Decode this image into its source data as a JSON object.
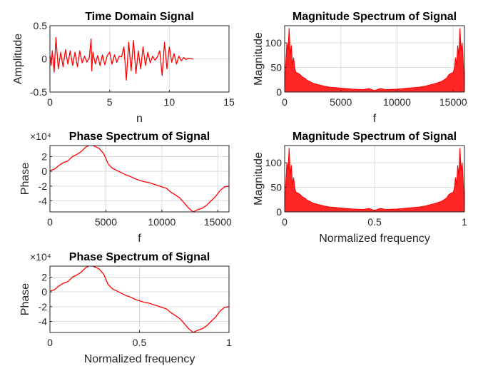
{
  "chart_data": [
    {
      "type": "line",
      "title": "Time Domain Signal",
      "xlabel": "n",
      "ylabel": "Amplitude",
      "xlim": [
        0,
        15
      ],
      "ylim": [
        -0.5,
        0.5
      ],
      "xticks": [
        "0",
        "5",
        "10",
        "15"
      ],
      "yticks": [
        "-0.5",
        "0",
        "0.5"
      ],
      "exponent": "",
      "grid": true,
      "color": "#ff0000",
      "series": [
        {
          "x": [
            0.0,
            0.1,
            0.2,
            0.35,
            0.5,
            0.7,
            0.9,
            1.1,
            1.3,
            1.5,
            1.7,
            1.9,
            2.1,
            2.3,
            2.5,
            2.7,
            2.9,
            3.1,
            3.3,
            3.45,
            3.5,
            3.6,
            3.8,
            4.0,
            4.2,
            4.4,
            4.6,
            4.8,
            5.0,
            5.2,
            5.4,
            5.6,
            5.8,
            6.0,
            6.2,
            6.4,
            6.6,
            6.8,
            7.0,
            7.2,
            7.4,
            7.6,
            7.8,
            8.0,
            8.2,
            8.4,
            8.6,
            8.8,
            9.0,
            9.2,
            9.4,
            9.6,
            9.8,
            10.0,
            10.2,
            10.4,
            10.6,
            10.8,
            11.0,
            11.2,
            11.4,
            11.6,
            11.8,
            12.0
          ],
          "y": [
            0.05,
            -0.1,
            0.12,
            -0.2,
            0.32,
            -0.15,
            0.1,
            -0.12,
            0.14,
            -0.08,
            0.12,
            -0.1,
            0.1,
            -0.12,
            0.12,
            -0.06,
            0.04,
            -0.05,
            0.02,
            0.3,
            -0.18,
            0.1,
            -0.08,
            0.05,
            -0.1,
            0.06,
            -0.09,
            0.05,
            0.1,
            -0.08,
            0.06,
            -0.05,
            0.04,
            0.03,
            0.18,
            -0.32,
            0.25,
            -0.18,
            0.28,
            -0.22,
            0.12,
            -0.15,
            0.18,
            -0.1,
            0.1,
            -0.06,
            0.04,
            -0.02,
            0.03,
            0.12,
            -0.25,
            0.25,
            -0.15,
            0.18,
            -0.05,
            0.08,
            -0.08,
            0.04,
            -0.03,
            0.02,
            -0.01,
            0.01,
            0.0,
            0.0
          ]
        }
      ]
    },
    {
      "type": "area",
      "title": "Magnitude Spectrum of Signal",
      "xlabel": "f",
      "ylabel": "Magnitude",
      "xlim": [
        0,
        16000
      ],
      "ylim": [
        0,
        135
      ],
      "xticks": [
        "0",
        "5000",
        "10000",
        "15000"
      ],
      "yticks": [
        "0",
        "50",
        "100"
      ],
      "exponent": "",
      "grid": true,
      "color": "#ff0000",
      "series": [
        {
          "x": [
            0,
            100,
            200,
            300,
            400,
            500,
            600,
            700,
            800,
            900,
            1000,
            1200,
            1400,
            1600,
            1800,
            2000,
            2200,
            2500,
            3000,
            3500,
            4000,
            5000,
            6000,
            7000,
            7500,
            8000,
            8500,
            9000,
            10000,
            11000,
            12000,
            12500,
            13000,
            13500,
            14000,
            14200,
            14400,
            14600,
            14800,
            15000,
            15100,
            15200,
            15300,
            15400,
            15500,
            15600,
            15700,
            15800,
            15900,
            16000
          ],
          "y": [
            5,
            60,
            100,
            85,
            130,
            75,
            95,
            55,
            70,
            48,
            40,
            38,
            35,
            30,
            28,
            24,
            22,
            18,
            15,
            12,
            10,
            8,
            6,
            5,
            7,
            3,
            7,
            5,
            6,
            8,
            10,
            12,
            15,
            18,
            22,
            25,
            28,
            35,
            38,
            40,
            48,
            70,
            55,
            95,
            75,
            130,
            85,
            100,
            60,
            5
          ]
        }
      ]
    },
    {
      "type": "line",
      "title": "Phase Spectrum of Signal",
      "xlabel": "f",
      "ylabel": "Phase",
      "xlim": [
        0,
        16000
      ],
      "ylim": [
        -5.5,
        3.5
      ],
      "xticks": [
        "0",
        "5000",
        "10000",
        "15000"
      ],
      "yticks": [
        "-4",
        "-2",
        "0",
        "2"
      ],
      "exponent": "×10⁴",
      "grid": true,
      "color": "#ff0000",
      "series": [
        {
          "x": [
            0,
            400,
            800,
            1200,
            1600,
            2000,
            2400,
            2800,
            3200,
            3600,
            4000,
            4400,
            4800,
            5200,
            5600,
            6000,
            6400,
            6800,
            7200,
            7600,
            8000,
            8400,
            8800,
            9200,
            9600,
            10000,
            10400,
            10800,
            11200,
            11600,
            12000,
            12400,
            12800,
            13200,
            13600,
            14000,
            14400,
            14800,
            15200,
            15600,
            16000
          ],
          "y": [
            0.1,
            0.3,
            0.8,
            1.2,
            1.4,
            2.0,
            2.3,
            2.7,
            3.3,
            3.6,
            3.4,
            3.1,
            2.4,
            1.0,
            0.4,
            0.1,
            -0.2,
            -0.5,
            -0.7,
            -1.0,
            -1.2,
            -1.4,
            -1.5,
            -1.7,
            -1.9,
            -2.1,
            -2.3,
            -2.8,
            -3.2,
            -3.6,
            -4.3,
            -5.0,
            -5.5,
            -5.2,
            -5.0,
            -4.6,
            -4.0,
            -3.4,
            -2.6,
            -2.1,
            -2.0
          ]
        }
      ]
    },
    {
      "type": "area",
      "title": "Magnitude Spectrum of Signal",
      "xlabel": "Normalized frequency",
      "ylabel": "Magnitude",
      "xlim": [
        0,
        1
      ],
      "ylim": [
        0,
        135
      ],
      "xticks": [
        "0",
        "0.5",
        "1"
      ],
      "yticks": [
        "0",
        "50",
        "100"
      ],
      "exponent": "",
      "grid": true,
      "color": "#ff0000",
      "series": [
        {
          "x": [
            0.0,
            0.00625,
            0.0125,
            0.01875,
            0.025,
            0.03125,
            0.0375,
            0.04375,
            0.05,
            0.05625,
            0.0625,
            0.075,
            0.0875,
            0.1,
            0.1125,
            0.125,
            0.1375,
            0.15625,
            0.1875,
            0.21875,
            0.25,
            0.3125,
            0.375,
            0.4375,
            0.46875,
            0.5,
            0.53125,
            0.5625,
            0.625,
            0.6875,
            0.75,
            0.78125,
            0.8125,
            0.84375,
            0.875,
            0.8875,
            0.9,
            0.9125,
            0.925,
            0.9375,
            0.94375,
            0.95,
            0.95625,
            0.9625,
            0.96875,
            0.975,
            0.98125,
            0.9875,
            0.99375,
            1.0
          ],
          "y": [
            5,
            60,
            100,
            85,
            130,
            75,
            95,
            55,
            70,
            48,
            40,
            38,
            35,
            30,
            28,
            24,
            22,
            18,
            15,
            12,
            10,
            8,
            6,
            5,
            7,
            3,
            7,
            5,
            6,
            8,
            10,
            12,
            15,
            18,
            22,
            25,
            28,
            35,
            38,
            40,
            48,
            70,
            55,
            95,
            75,
            130,
            85,
            100,
            60,
            5
          ]
        }
      ]
    },
    {
      "type": "line",
      "title": "Phase Spectrum of Signal",
      "xlabel": "Normalized frequency",
      "ylabel": "Phase",
      "xlim": [
        0,
        1
      ],
      "ylim": [
        -5.5,
        3.5
      ],
      "xticks": [
        "0",
        "0.5",
        "1"
      ],
      "yticks": [
        "-4",
        "-2",
        "0",
        "2"
      ],
      "exponent": "×10⁴",
      "grid": true,
      "color": "#ff0000",
      "series": [
        {
          "x": [
            0.0,
            0.025,
            0.05,
            0.075,
            0.1,
            0.125,
            0.15,
            0.175,
            0.2,
            0.225,
            0.25,
            0.275,
            0.3,
            0.325,
            0.35,
            0.375,
            0.4,
            0.425,
            0.45,
            0.475,
            0.5,
            0.525,
            0.55,
            0.575,
            0.6,
            0.625,
            0.65,
            0.675,
            0.7,
            0.725,
            0.75,
            0.775,
            0.8,
            0.825,
            0.85,
            0.875,
            0.9,
            0.925,
            0.95,
            0.975,
            1.0
          ],
          "y": [
            0.1,
            0.3,
            0.8,
            1.2,
            1.4,
            2.0,
            2.3,
            2.7,
            3.3,
            3.6,
            3.4,
            3.1,
            2.4,
            1.0,
            0.4,
            0.1,
            -0.2,
            -0.5,
            -0.7,
            -1.0,
            -1.2,
            -1.4,
            -1.5,
            -1.7,
            -1.9,
            -2.1,
            -2.3,
            -2.8,
            -3.2,
            -3.6,
            -4.3,
            -5.0,
            -5.5,
            -5.2,
            -5.0,
            -4.6,
            -4.0,
            -3.4,
            -2.6,
            -2.1,
            -2.0
          ]
        }
      ]
    }
  ]
}
